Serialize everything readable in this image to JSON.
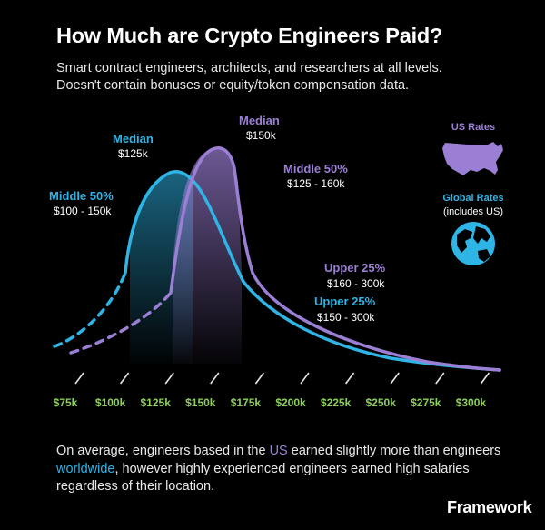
{
  "title": "How Much are Crypto Engineers Paid?",
  "subtitle": {
    "line1": "Smart contract engineers, architects, and researchers at all levels.",
    "line2": "Doesn't contain bonuses or equity/token compensation data."
  },
  "footer": {
    "part1": "On average, engineers based in the ",
    "us": "US",
    "part2": " earned slightly more than engineers ",
    "worldwide": "worldwide",
    "part3": ", however highly experienced engineers earned high salaries regardless of their location."
  },
  "brand": "Framework",
  "colors": {
    "us": "#9b7fd4",
    "global": "#2fb4e6",
    "tick_label": "#8ecf5a",
    "background": "#000000"
  },
  "legend": {
    "us_label": "US Rates",
    "us_icon": "usa-map-icon",
    "global_label": "Global Rates",
    "global_sub": "(includes US)",
    "global_icon": "globe-icon"
  },
  "chart_data": {
    "type": "area",
    "xlabel": "",
    "ylabel": "",
    "x_ticks": [
      "$75k",
      "$100k",
      "$125k",
      "$150k",
      "$175k",
      "$200k",
      "$225k",
      "$250k",
      "$275k",
      "$300k"
    ],
    "xlim": [
      75,
      300
    ],
    "legend_position": "right",
    "series": [
      {
        "name": "Global Rates",
        "color": "#2fb4e6",
        "median_label": "Median",
        "median": "$125k",
        "median_value": 125,
        "middle50_label": "Middle 50%",
        "middle50": "$100 - 150k",
        "middle50_range": [
          100,
          150
        ],
        "upper25_label": "Upper 25%",
        "upper25": "$150 - 300k",
        "upper25_range": [
          150,
          300
        ]
      },
      {
        "name": "US Rates",
        "color": "#9b7fd4",
        "median_label": "Median",
        "median": "$150k",
        "median_value": 150,
        "middle50_label": "Middle 50%",
        "middle50": "$125 - 160k",
        "middle50_range": [
          125,
          160
        ],
        "upper25_label": "Upper 25%",
        "upper25": "$160 - 300k",
        "upper25_range": [
          160,
          300
        ]
      }
    ]
  }
}
